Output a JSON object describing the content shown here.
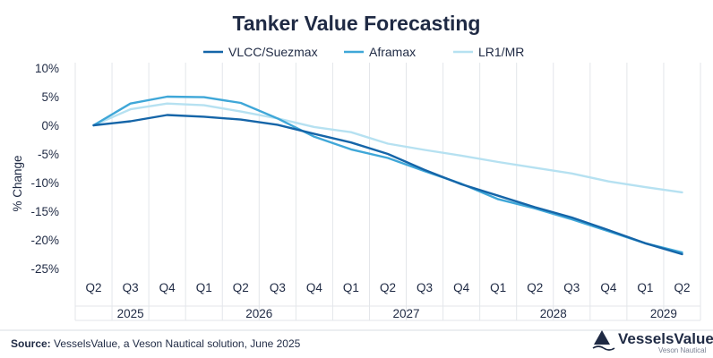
{
  "chart_data": {
    "type": "line",
    "title": "Tanker Value Forecasting",
    "ylabel": "% Change",
    "xlabel": "",
    "ylim": [
      -25,
      10
    ],
    "yticks": [
      "10%",
      "5%",
      "0%",
      "-5%",
      "-10%",
      "-15%",
      "-20%",
      "-25%"
    ],
    "ytick_values": [
      10,
      5,
      0,
      -5,
      -10,
      -15,
      -20,
      -25
    ],
    "categories": [
      "Q2",
      "Q3",
      "Q4",
      "Q1",
      "Q2",
      "Q3",
      "Q4",
      "Q1",
      "Q2",
      "Q3",
      "Q4",
      "Q1",
      "Q2",
      "Q3",
      "Q4",
      "Q1",
      "Q2"
    ],
    "years": [
      {
        "label": "2025",
        "start": 0,
        "end": 2
      },
      {
        "label": "2026",
        "start": 3,
        "end": 6
      },
      {
        "label": "2027",
        "start": 7,
        "end": 10
      },
      {
        "label": "2028",
        "start": 11,
        "end": 14
      },
      {
        "label": "2029",
        "start": 15,
        "end": 16
      }
    ],
    "grid": "vertical",
    "legend_position": "top-center",
    "series": [
      {
        "name": "VLCC/Suezmax",
        "color": "#1565a8",
        "values": [
          0,
          0.7,
          1.8,
          1.5,
          1.0,
          0.1,
          -1.5,
          -3.0,
          -5.0,
          -7.8,
          -10.3,
          -12.3,
          -14.3,
          -16.1,
          -18.3,
          -20.6,
          -22.5
        ]
      },
      {
        "name": "Aframax",
        "color": "#3fa7d8",
        "values": [
          0,
          3.8,
          5.0,
          4.9,
          3.9,
          1.2,
          -2.0,
          -4.2,
          -5.7,
          -8.0,
          -10.2,
          -12.9,
          -14.5,
          -16.4,
          -18.5,
          -20.6,
          -22.2
        ]
      },
      {
        "name": "LR1/MR",
        "color": "#b6e1f1",
        "values": [
          0,
          2.8,
          3.8,
          3.5,
          2.4,
          1.2,
          -0.3,
          -1.2,
          -3.2,
          -4.3,
          -5.3,
          -6.4,
          -7.4,
          -8.4,
          -9.8,
          -10.8,
          -11.7
        ]
      }
    ]
  },
  "footer": {
    "source_label": "Source:",
    "source_text": " VesselsValue, a Veson Nautical solution, June 2025"
  },
  "brand": {
    "name": "VesselsValue",
    "sub": "Veson Nautical",
    "icon": "wave-logo-icon",
    "color": "#1f2a44"
  }
}
